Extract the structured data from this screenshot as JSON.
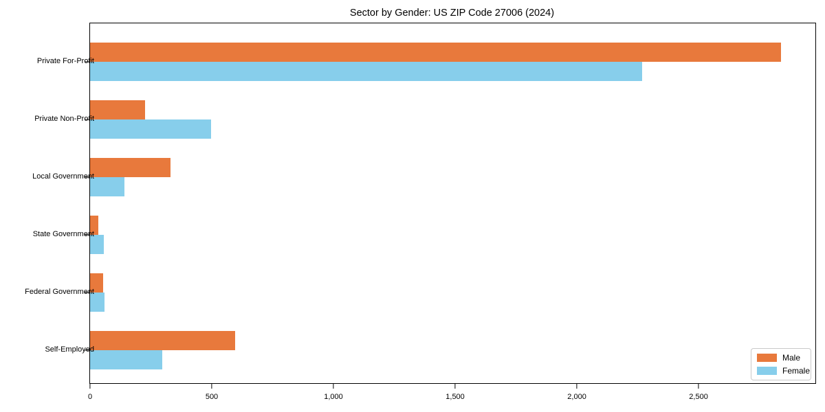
{
  "figure": {
    "background": "#ffffff",
    "axis_color": "#000000",
    "text_color": "#000000"
  },
  "chart_data": {
    "type": "bar",
    "orientation": "horizontal",
    "title": "Sector by Gender: US ZIP Code 27006 (2024)",
    "xlabel": "",
    "ylabel": "",
    "categories": [
      "Private For-Profit",
      "Private Non-Profit",
      "Local Government",
      "State Government",
      "Federal Government",
      "Self-Employed"
    ],
    "series": [
      {
        "name": "Male",
        "color": "#e8793c",
        "values": [
          2840,
          225,
          330,
          35,
          53,
          597
        ]
      },
      {
        "name": "Female",
        "color": "#87ceeb",
        "values": [
          2268,
          497,
          140,
          56,
          58,
          297
        ]
      }
    ],
    "xlim": [
      0,
      2980
    ],
    "x_ticks": [
      {
        "value": 0,
        "label": "0"
      },
      {
        "value": 500,
        "label": "500"
      },
      {
        "value": 1000,
        "label": "1,000"
      },
      {
        "value": 1500,
        "label": "1,500"
      },
      {
        "value": 2000,
        "label": "2,000"
      },
      {
        "value": 2500,
        "label": "2,500"
      }
    ],
    "grid": false,
    "legend": {
      "position": "lower-right"
    }
  }
}
